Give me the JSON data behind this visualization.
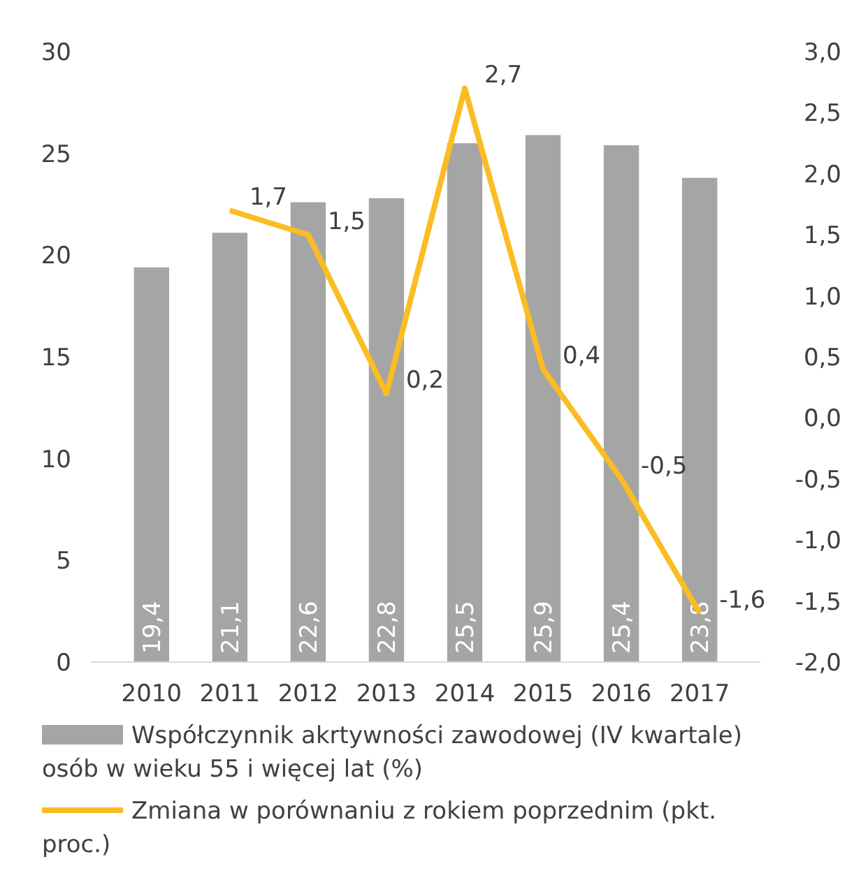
{
  "chart_data": {
    "type": "bar",
    "categories": [
      "2010",
      "2011",
      "2012",
      "2013",
      "2014",
      "2015",
      "2016",
      "2017"
    ],
    "series": [
      {
        "name": "Współczynnik akrtywności zawodowej (IV kwartale) osób w wieku 55 i więcej lat (%)",
        "color": "#a5a5a5",
        "values": [
          19.4,
          21.1,
          22.6,
          22.8,
          25.5,
          25.9,
          25.4,
          23.8
        ],
        "value_labels": [
          "19,4",
          "21,1",
          "22,6",
          "22,8",
          "25,5",
          "25,9",
          "25,4",
          "23,8"
        ]
      },
      {
        "name": "Zmiana w porównaniu z rokiem poprzednim (pkt. proc.)",
        "type": "line",
        "axis": "y2",
        "color": "#fbbc24",
        "values": [
          null,
          1.7,
          1.5,
          0.2,
          2.7,
          0.4,
          -0.5,
          -1.6
        ],
        "value_labels": [
          null,
          "1,7",
          "1,5",
          "0,2",
          "2,7",
          "0,4",
          "-0,5",
          "-1,6"
        ]
      }
    ],
    "ylim": [
      0,
      30
    ],
    "yticks": [
      0,
      5,
      10,
      15,
      20,
      25,
      30
    ],
    "y2lim": [
      -2,
      3
    ],
    "y2ticks": [
      {
        "value": -2,
        "label": "-2,0"
      },
      {
        "value": -1.5,
        "label": "-1,5"
      },
      {
        "value": -1,
        "label": "-1,0"
      },
      {
        "value": -0.5,
        "label": "-0,5"
      },
      {
        "value": 0,
        "label": "0,0"
      },
      {
        "value": 0.5,
        "label": "0,5"
      },
      {
        "value": 1,
        "label": "1,0"
      },
      {
        "value": 1.5,
        "label": "1,5"
      },
      {
        "value": 2,
        "label": "2,0"
      },
      {
        "value": 2.5,
        "label": "2,5"
      },
      {
        "value": 3,
        "label": "3,0"
      }
    ],
    "legend": "bottom",
    "grid": false
  }
}
